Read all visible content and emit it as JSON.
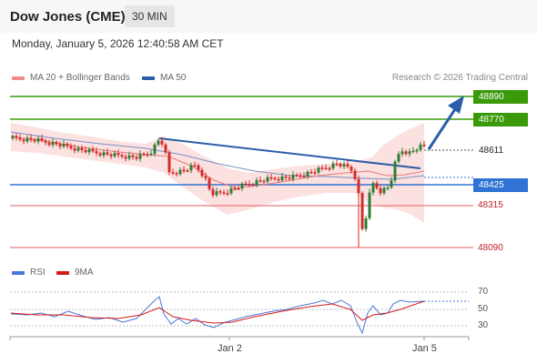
{
  "header": {
    "title": "Dow Jones (CME)",
    "timeframe": "30 MIN"
  },
  "datetime": "Monday, January 5, 2026 12:40:58 AM CET",
  "legend": {
    "main": [
      {
        "label": "MA 20 + Bollinger Bands",
        "color": "#f08a8a"
      },
      {
        "label": "MA 50",
        "color": "#2b5ea8"
      }
    ],
    "rsi": [
      {
        "label": "RSI",
        "color": "#4a78d6"
      },
      {
        "label": "9MA",
        "color": "#d41a1a"
      }
    ]
  },
  "source": "Research © 2026 Trading Central",
  "levels": [
    {
      "value": "48890",
      "type": "resistance"
    },
    {
      "value": "48770",
      "type": "resistance"
    },
    {
      "value": "48611",
      "type": "last"
    },
    {
      "value": "48425",
      "type": "pivot"
    },
    {
      "value": "48315",
      "type": "support"
    },
    {
      "value": "48090",
      "type": "support"
    }
  ],
  "rsi_levels": [
    "70",
    "50",
    "30"
  ],
  "x_labels": [
    "Jan 2",
    "Jan 5"
  ],
  "colors": {
    "resistance": "#3a9a0a",
    "pivot": "#2f73d4",
    "support": "#e35b5b",
    "up": "#2e7d32",
    "down": "#d42a2a"
  }
}
